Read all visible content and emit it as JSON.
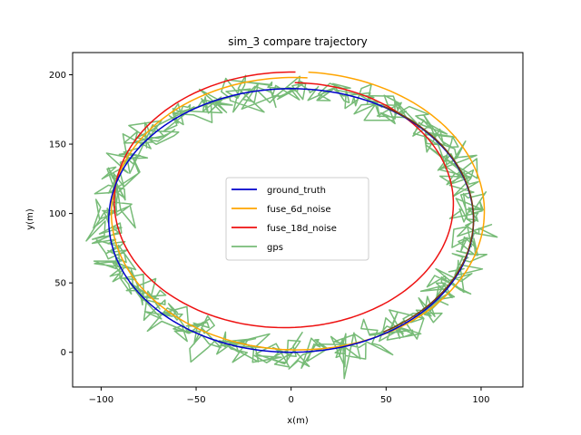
{
  "chart_data": {
    "type": "line",
    "title": "sim_3 compare trajectory",
    "xlabel": "x(m)",
    "ylabel": "y(m)",
    "xlim": [
      -115,
      122
    ],
    "ylim": [
      -25,
      216
    ],
    "x_ticks": [
      -100,
      -50,
      0,
      50,
      100
    ],
    "y_ticks": [
      0,
      50,
      100,
      150,
      200
    ],
    "grid": false,
    "legend_position": "center",
    "series": [
      {
        "name": "ground_truth",
        "color": "#0000cc",
        "shape": "ellipse",
        "cx": 0,
        "cy": 95,
        "rx": 96,
        "ry": 95,
        "width": 1.5
      },
      {
        "name": "fuse_6d_noise",
        "color": "#ffa500",
        "shape": "spiral",
        "cx": 2,
        "cy": 102,
        "rx": 95,
        "ry": 96,
        "start_deg": 86,
        "growth": 0.0065,
        "width": 1.5
      },
      {
        "name": "fuse_18d_noise",
        "color": "#ee1111",
        "shape": "spiral",
        "cx": -1,
        "cy": 106,
        "rx": 95,
        "ry": 96,
        "start_deg": 88,
        "growth": -0.012,
        "width": 1.5
      },
      {
        "name": "gps",
        "color": "#77bb77",
        "shape": "noisy",
        "cx": 0,
        "cy": 95,
        "rx": 96,
        "ry": 95,
        "sigma": 6,
        "points": 650,
        "width": 1.5
      },
      {
        "name": "",
        "color": "#7a3b10",
        "shape": "ellipse",
        "cx": 1,
        "cy": 96,
        "rx": 95,
        "ry": 94,
        "start_deg": -60,
        "end_deg": 60,
        "width": 1.5
      }
    ]
  }
}
